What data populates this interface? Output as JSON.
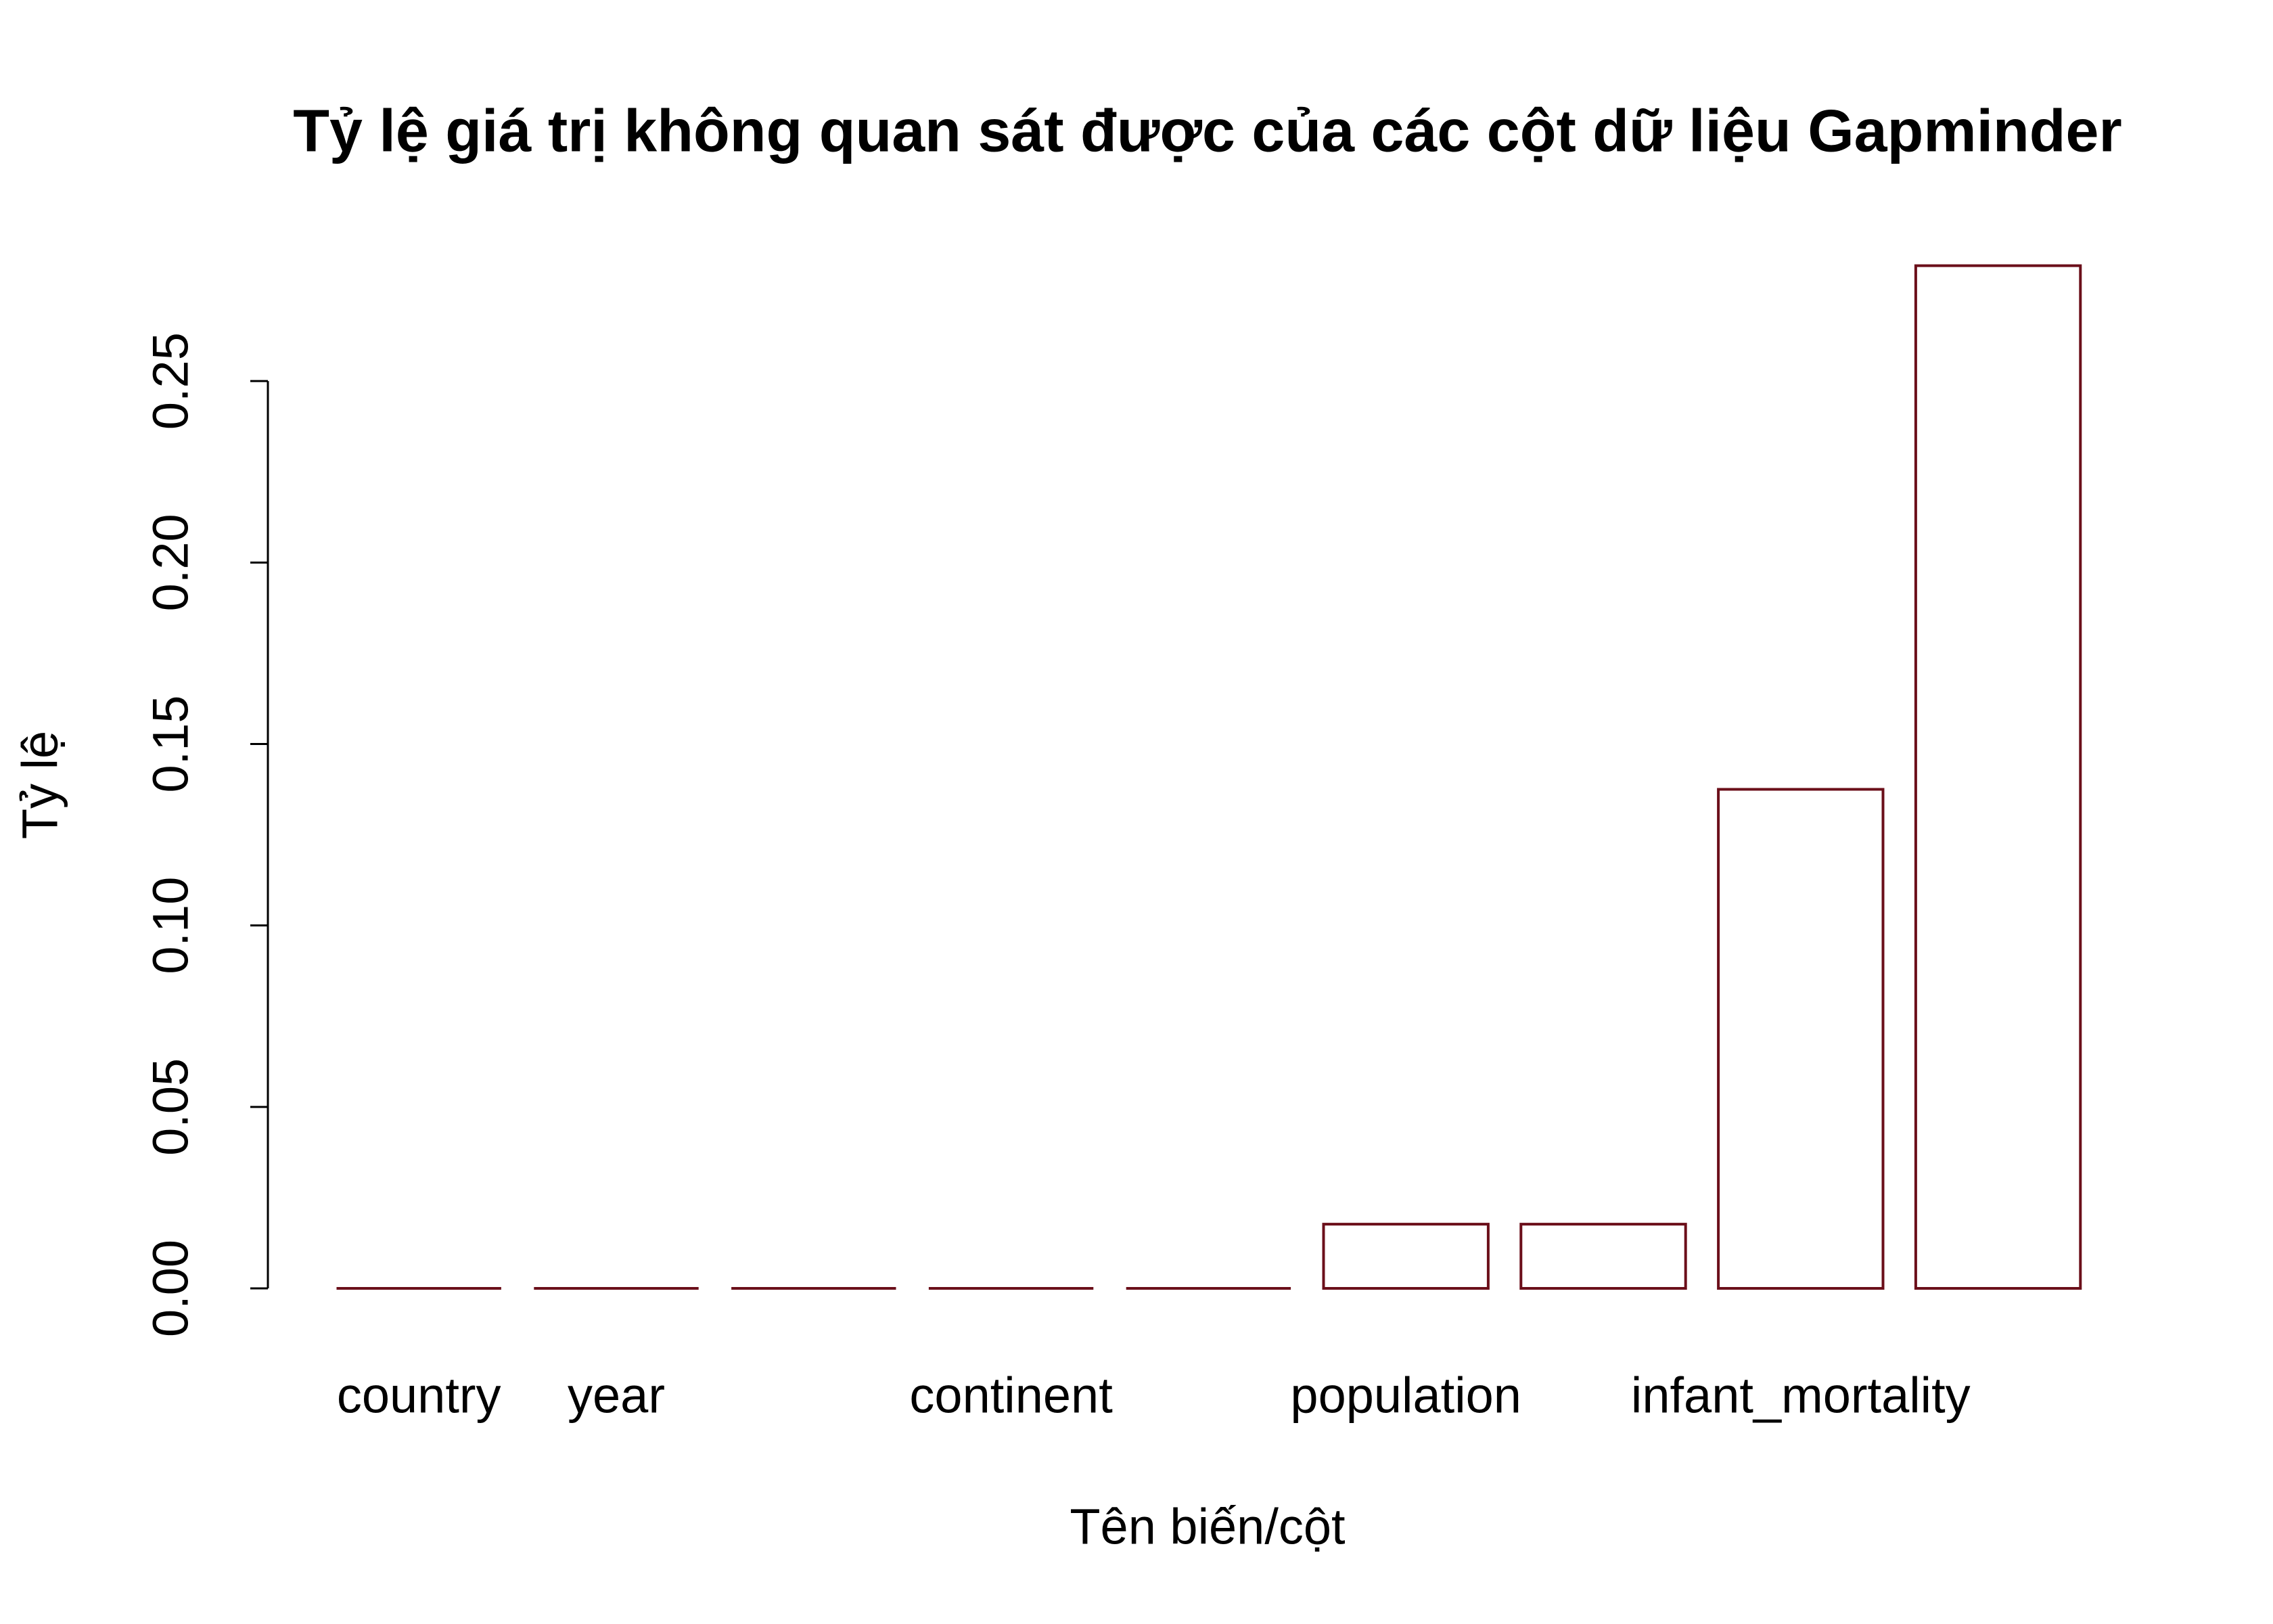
{
  "chart_data": {
    "type": "bar",
    "title": "Tỷ lệ giá trị không quan sát được của các cột dữ liệu Gapminder",
    "xlabel": "Tên biến/cột",
    "ylabel": "Tỷ lệ",
    "categories": [
      "country",
      "year",
      null,
      "continent",
      null,
      "population",
      null,
      "infant_mortality",
      null
    ],
    "values": [
      0,
      0,
      0,
      0,
      0,
      0.0177,
      0.0177,
      0.1375,
      0.2818
    ],
    "color": "#6b0f1a",
    "ylim": [
      0,
      0.3
    ],
    "yticks": [
      {
        "value": 0,
        "label": "0.00"
      },
      0.05,
      {
        "value": 0.1,
        "label": "0.10"
      },
      0.15,
      {
        "value": 0.2,
        "label": "0.20"
      },
      0.25
    ]
  }
}
